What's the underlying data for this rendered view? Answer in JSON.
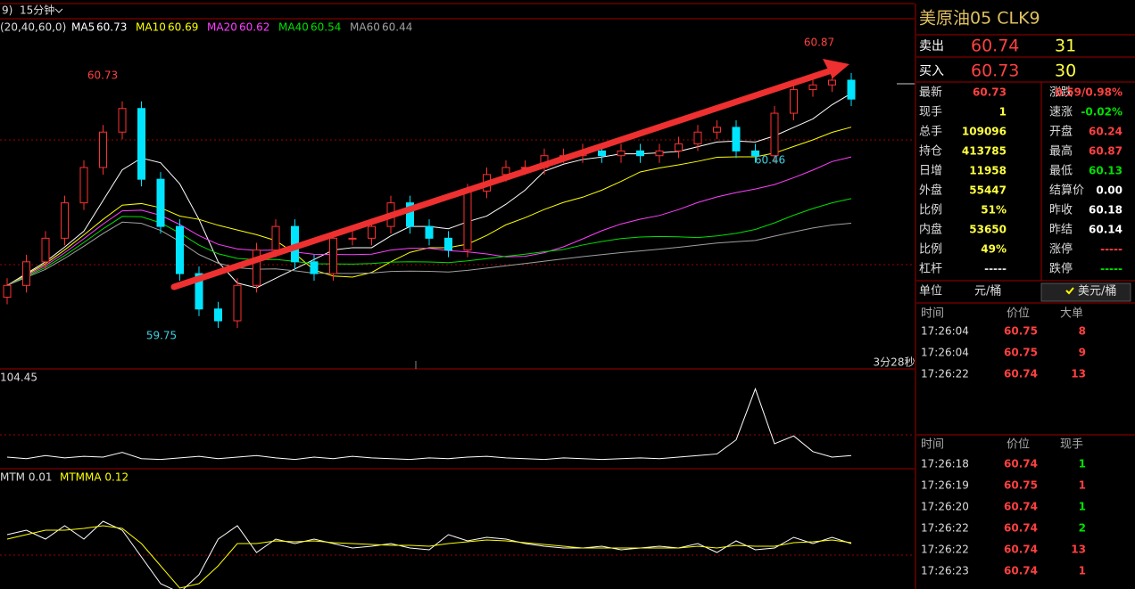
{
  "toolbar": {
    "left": "9)",
    "period": "15分钟"
  },
  "legend": {
    "params": "(20,40,60,0)",
    "items": [
      {
        "name": "MA5",
        "value": 60.73,
        "color": "#ffffff"
      },
      {
        "name": "MA10",
        "value": 60.69,
        "color": "#ffff00"
      },
      {
        "name": "MA20",
        "value": 60.62,
        "color": "#ff40ff"
      },
      {
        "name": "MA40",
        "value": 60.54,
        "color": "#00e000"
      },
      {
        "name": "MA60",
        "value": 60.44,
        "color": "#a0a0a0"
      }
    ]
  },
  "chart_data": {
    "type": "candlestick",
    "open": [
      59.9,
      59.95,
      60.05,
      60.15,
      60.3,
      60.45,
      60.6,
      60.7,
      60.4,
      60.2,
      60.0,
      59.85,
      59.8,
      59.95,
      60.1,
      60.2,
      60.05,
      60.0,
      60.15,
      60.15,
      60.2,
      60.3,
      60.2,
      60.15,
      60.1,
      60.35,
      60.42,
      60.45,
      60.45,
      60.5,
      60.5,
      60.52,
      60.5,
      60.52,
      60.5,
      60.52,
      60.55,
      60.6,
      60.62,
      60.52,
      60.5,
      60.68,
      60.78,
      60.8,
      60.82
    ],
    "close": [
      59.95,
      60.05,
      60.15,
      60.3,
      60.45,
      60.6,
      60.7,
      60.4,
      60.2,
      60.0,
      59.85,
      59.8,
      59.95,
      60.1,
      60.2,
      60.05,
      60.0,
      60.15,
      60.15,
      60.2,
      60.3,
      60.2,
      60.15,
      60.1,
      60.35,
      60.42,
      60.45,
      60.45,
      60.5,
      60.5,
      60.52,
      60.5,
      60.52,
      60.5,
      60.52,
      60.55,
      60.6,
      60.62,
      60.52,
      60.5,
      60.68,
      60.78,
      60.8,
      60.82,
      60.74
    ],
    "annotations": [
      {
        "text": "60.73",
        "color": "#ff4040"
      },
      {
        "text": "59.75",
        "color": "#40d0e0"
      },
      {
        "text": "60.87",
        "color": "#ff4040"
      },
      {
        "text": "60.46",
        "color": "#40d0e0"
      }
    ],
    "countdown": "3分28秒"
  },
  "indicator1": {
    "label": "104.45",
    "values": [
      8,
      6,
      10,
      7,
      9,
      8,
      14,
      6,
      5,
      7,
      9,
      6,
      8,
      10,
      7,
      5,
      8,
      6,
      9,
      7,
      6,
      5,
      7,
      6,
      8,
      9,
      7,
      6,
      5,
      7,
      6,
      5,
      6,
      7,
      6,
      8,
      10,
      12,
      30,
      95,
      25,
      35,
      15,
      8,
      10
    ]
  },
  "indicator2": {
    "labels": [
      "MTM 0.01",
      "MTMMA 0.12"
    ],
    "mtm": [
      0.15,
      0.2,
      0.1,
      0.25,
      0.1,
      0.3,
      0.2,
      -0.1,
      -0.4,
      -0.5,
      -0.3,
      0.1,
      0.25,
      -0.05,
      0.1,
      0.05,
      0.1,
      0.05,
      0.0,
      0.02,
      0.05,
      0.0,
      -0.02,
      0.15,
      0.08,
      0.12,
      0.1,
      0.05,
      0.02,
      0.0,
      0.0,
      0.02,
      -0.02,
      0.0,
      0.02,
      0.0,
      0.05,
      -0.05,
      0.08,
      -0.02,
      0.0,
      0.12,
      0.05,
      0.12,
      0.05
    ],
    "mtmma": [
      0.1,
      0.15,
      0.2,
      0.2,
      0.22,
      0.25,
      0.22,
      0.05,
      -0.2,
      -0.45,
      -0.4,
      -0.2,
      0.05,
      0.05,
      0.08,
      0.07,
      0.08,
      0.06,
      0.05,
      0.04,
      0.03,
      0.03,
      0.02,
      0.05,
      0.07,
      0.09,
      0.08,
      0.06,
      0.04,
      0.02,
      0.0,
      0.0,
      0.0,
      0.0,
      0.0,
      0.0,
      0.02,
      0.0,
      0.03,
      0.02,
      0.02,
      0.06,
      0.07,
      0.09,
      0.06
    ]
  },
  "quote": {
    "title": "美原油05  CLK9",
    "sell": {
      "label": "卖出",
      "price": "60.74",
      "qty": "31"
    },
    "buy": {
      "label": "买入",
      "price": "60.73",
      "qty": "30"
    },
    "rows": [
      [
        "最新",
        "60.73",
        "涨跌",
        "0.59/0.98%"
      ],
      [
        "现手",
        "1",
        "速涨",
        "-0.02%"
      ],
      [
        "总手",
        "109096",
        "开盘",
        "60.24"
      ],
      [
        "持仓",
        "413785",
        "最高",
        "60.87"
      ],
      [
        "日增",
        "11958",
        "最低",
        "60.13"
      ],
      [
        "外盘",
        "55447",
        "结算价",
        "0.00"
      ],
      [
        "比例",
        "51%",
        "昨收",
        "60.18"
      ],
      [
        "内盘",
        "53650",
        "昨结",
        "60.14"
      ],
      [
        "比例",
        "49%",
        "涨停",
        "-----"
      ],
      [
        "杠杆",
        "-----",
        "跌停",
        "-----"
      ]
    ],
    "unit": {
      "label": "单位",
      "a": "元/桶",
      "b": "美元/桶"
    }
  },
  "trades_big": {
    "headers": [
      "时间",
      "价位",
      "大单"
    ],
    "rows": [
      [
        "17:26:04",
        "60.75",
        "8"
      ],
      [
        "17:26:04",
        "60.75",
        "9"
      ],
      [
        "17:26:22",
        "60.74",
        "13"
      ]
    ]
  },
  "trades": {
    "headers": [
      "时间",
      "价位",
      "现手"
    ],
    "rows": [
      [
        "17:26:18",
        "60.74",
        "1"
      ],
      [
        "17:26:19",
        "60.75",
        "1"
      ],
      [
        "17:26:20",
        "60.74",
        "1"
      ],
      [
        "17:26:22",
        "60.74",
        "2"
      ],
      [
        "17:26:22",
        "60.74",
        "13"
      ],
      [
        "17:26:23",
        "60.74",
        "1"
      ]
    ]
  }
}
